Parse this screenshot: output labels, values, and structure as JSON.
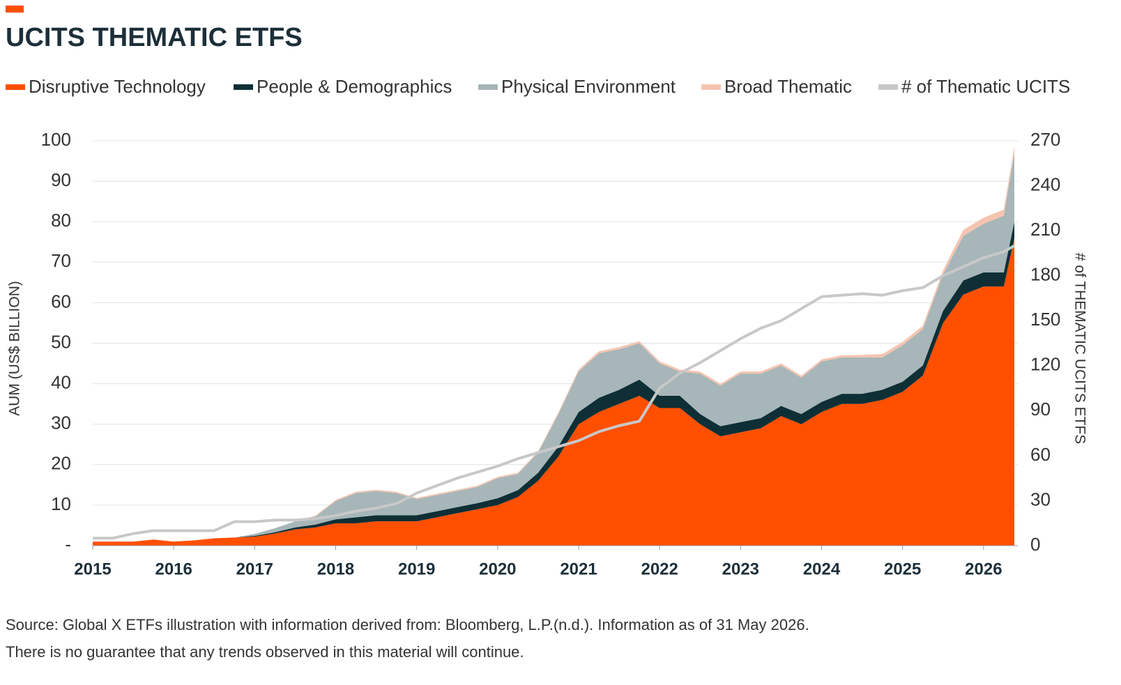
{
  "chart_data": {
    "type": "area",
    "title": "UCITS THEMATIC ETFS",
    "ylabel": "AUM (US$ BILLION)",
    "y2label": "# of THEMATIC UCITS ETFS",
    "source": "Source: Global X ETFs illustration with information derived from: Bloomberg, L.P.(n.d.). Information as of 31 May 2026.",
    "note": "There is no guarantee that any trends observed in this material will continue.",
    "stacked": true,
    "grid": true,
    "x": [
      2015,
      2015.25,
      2015.5,
      2015.75,
      2016,
      2016.25,
      2016.5,
      2016.75,
      2017,
      2017.25,
      2017.5,
      2017.75,
      2018,
      2018.25,
      2018.5,
      2018.75,
      2019,
      2019.25,
      2019.5,
      2019.75,
      2020,
      2020.25,
      2020.5,
      2020.75,
      2021,
      2021.25,
      2021.5,
      2021.75,
      2022,
      2022.25,
      2022.5,
      2022.75,
      2023,
      2023.25,
      2023.5,
      2023.75,
      2024,
      2024.25,
      2024.5,
      2024.75,
      2025,
      2025.25,
      2025.5,
      2025.75,
      2026,
      2026.25,
      2026.38
    ],
    "xlim": [
      2015,
      2026.38
    ],
    "xticks": [
      2015,
      2016,
      2017,
      2018,
      2019,
      2020,
      2021,
      2022,
      2023,
      2024,
      2025,
      2026
    ],
    "ylim": [
      0,
      100
    ],
    "yticks": [
      {
        "value": 0,
        "label": "-"
      },
      10,
      20,
      30,
      40,
      50,
      60,
      70,
      80,
      90,
      100
    ],
    "y2lim": [
      0,
      270
    ],
    "y2ticks": [
      0,
      30,
      60,
      90,
      120,
      150,
      180,
      210,
      240,
      270
    ],
    "series": [
      {
        "name": "Disruptive Technology",
        "color": "#ff4f00",
        "values": [
          1,
          1,
          1,
          1.5,
          1,
          1.3,
          1.8,
          2,
          2.2,
          3,
          4,
          4.5,
          5.5,
          5.5,
          6,
          6,
          6,
          7,
          8,
          9,
          10,
          12,
          16,
          22,
          30,
          33,
          35,
          37,
          34,
          34,
          30,
          27,
          28,
          29,
          32,
          30,
          33,
          35,
          35,
          36,
          38,
          42,
          55,
          62,
          64,
          64,
          76
        ]
      },
      {
        "name": "People & Demographics",
        "color": "#0e2f36",
        "values": [
          0,
          0,
          0,
          0,
          0,
          0,
          0,
          0,
          0.2,
          0.3,
          0.5,
          0.7,
          1,
          1.5,
          1.5,
          1.5,
          1.5,
          1.5,
          1.5,
          1.5,
          1.7,
          1.7,
          2,
          2.5,
          3,
          3.5,
          3.5,
          4,
          3,
          3,
          2.5,
          2.5,
          2.5,
          2.5,
          2.5,
          2.5,
          2.5,
          2.5,
          2.5,
          2.5,
          2.5,
          2.5,
          3,
          3.5,
          3.5,
          3.5,
          4
        ]
      },
      {
        "name": "Physical Environment",
        "color": "#a7b6b8",
        "values": [
          0,
          0,
          0,
          0,
          0,
          0,
          0,
          0,
          0.5,
          1,
          1.5,
          2,
          4.5,
          6,
          6,
          5.5,
          4,
          4,
          4,
          4,
          5,
          4,
          5,
          8,
          10,
          11,
          10,
          9,
          8,
          6,
          10,
          10,
          12,
          11,
          10,
          9,
          10,
          9,
          9,
          8,
          9,
          9,
          9,
          11,
          12,
          14,
          17
        ]
      },
      {
        "name": "Broad Thematic",
        "color": "#f5c4b0",
        "values": [
          0,
          0,
          0,
          0,
          0,
          0,
          0,
          0,
          0,
          0,
          0,
          0.2,
          0.3,
          0.3,
          0.3,
          0.3,
          0.3,
          0.3,
          0.3,
          0.3,
          0.3,
          0.3,
          0.3,
          0.4,
          0.5,
          0.5,
          0.5,
          0.5,
          0.5,
          0.5,
          0.5,
          0.5,
          0.5,
          0.5,
          0.5,
          0.5,
          0.5,
          0.5,
          0.6,
          0.8,
          0.8,
          0.8,
          1,
          1.5,
          1.5,
          1.5,
          1.5
        ]
      },
      {
        "name": "# of Thematic UCITS",
        "color": "#c8c8c8",
        "type": "line",
        "axis": "y2",
        "values": [
          5,
          5,
          8,
          10,
          10,
          10,
          10,
          16,
          16,
          17,
          17,
          18,
          20,
          23,
          25,
          28,
          35,
          40,
          45,
          49,
          53,
          58,
          62,
          66,
          70,
          76,
          80,
          83,
          105,
          115,
          122,
          130,
          138,
          145,
          150,
          158,
          166,
          167,
          168,
          167,
          170,
          172,
          180,
          186,
          192,
          196,
          200
        ]
      }
    ]
  }
}
